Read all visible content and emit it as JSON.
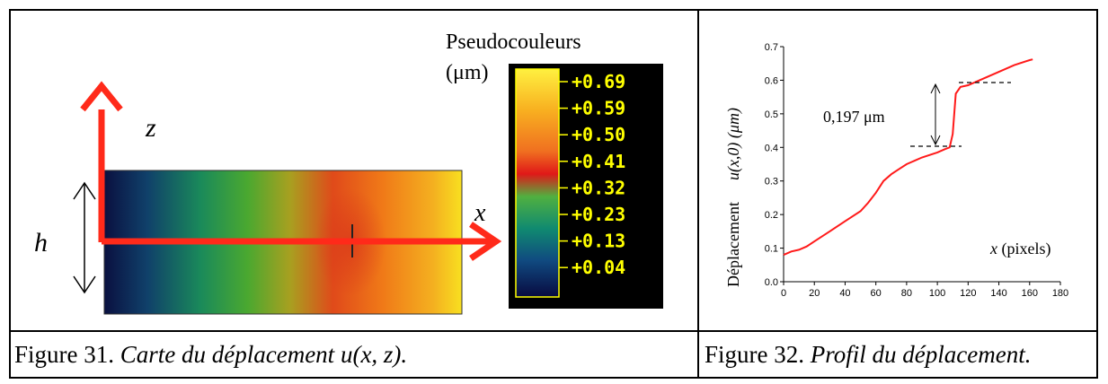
{
  "figure31": {
    "caption_prefix": "Figure 31. ",
    "caption_italic": "Carte du déplacement",
    "caption_math": " u(x, z).",
    "axis_z": "z",
    "axis_x": "x",
    "axis_h": "h",
    "colorbar_title": "Pseudocouleurs",
    "colorbar_unit": "(μm)",
    "colorbar_labels": [
      "+0.69",
      "+0.59",
      "+0.50",
      "+0.41",
      "+0.32",
      "+0.23",
      "+0.13",
      "+0.04"
    ],
    "colors": {
      "axis_red": "#ff2a1a",
      "label_yellow": "#ffff00"
    }
  },
  "figure32": {
    "caption_prefix": "Figure 32. ",
    "caption_italic": "Profil du déplacement.",
    "ylabel_word": "Déplacement",
    "ylabel_math": "u(x,0) (μm)",
    "xlabel_var": "x",
    "xlabel_unit": " (pixels)",
    "step_annotation": "0,197 μm",
    "chart_data": {
      "type": "line",
      "x": [
        0,
        5,
        10,
        15,
        20,
        30,
        40,
        50,
        55,
        60,
        65,
        70,
        75,
        80,
        90,
        100,
        105,
        108,
        110,
        112,
        115,
        120,
        130,
        140,
        150,
        160,
        162
      ],
      "y": [
        0.08,
        0.09,
        0.095,
        0.105,
        0.12,
        0.15,
        0.18,
        0.21,
        0.235,
        0.265,
        0.3,
        0.32,
        0.335,
        0.35,
        0.37,
        0.385,
        0.395,
        0.4,
        0.44,
        0.56,
        0.58,
        0.585,
        0.605,
        0.625,
        0.645,
        0.66,
        0.662
      ],
      "xlim": [
        0,
        180
      ],
      "ylim": [
        0,
        0.7
      ],
      "xticks": [
        0,
        20,
        40,
        60,
        80,
        100,
        120,
        140,
        160,
        180
      ],
      "yticks": [
        0.0,
        0.1,
        0.2,
        0.3,
        0.4,
        0.5,
        0.6,
        0.7
      ],
      "line_color": "#ff1a1a",
      "grid": false
    }
  }
}
